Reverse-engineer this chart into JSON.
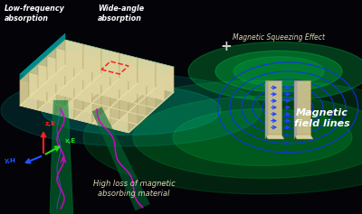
{
  "bg_color": "#030308",
  "label_low_freq": "Low-frequency\nabsorption",
  "label_wide_angle": "Wide-angle\nabsorption",
  "label_magnetic": "Magnetic\nfield lines",
  "label_squeezing": "Magnetic Squeezing Effect",
  "label_high_loss": "High loss of magnetic\nabsorbing material",
  "label_zk": "z,k",
  "label_yH": "y,H",
  "label_xE": "x,E",
  "wall_face_color": "#ddd4a0",
  "wall_side_color": "#c8be8a",
  "wall_top_color": "#eae0b0",
  "wall_edge_color": "#b0a060",
  "base_top_color": "#00dddd",
  "base_side_color": "#009999",
  "base_front_color": "#007777",
  "magnetic_line_color": "#1133ee",
  "arrow_color": "#2244ff",
  "text_color": "#ffffff",
  "italic_color": "#ddd8b0",
  "coord_z_color": "#ff2222",
  "coord_y_color": "#2255ff",
  "coord_x_color": "#22dd22",
  "red_rect_color": "#ff2222",
  "green_beam1_color": "#00aa44",
  "green_beam2_color": "#226644",
  "wave_color1": "#dd00cc",
  "wave_color2": "#cc44ff",
  "panel_face_color": "#cec28e",
  "panel_top_color": "#e2d8a8",
  "panel_edge_color": "#a09050",
  "plus_color": "#cccccc",
  "glow_green": "#00cc44"
}
